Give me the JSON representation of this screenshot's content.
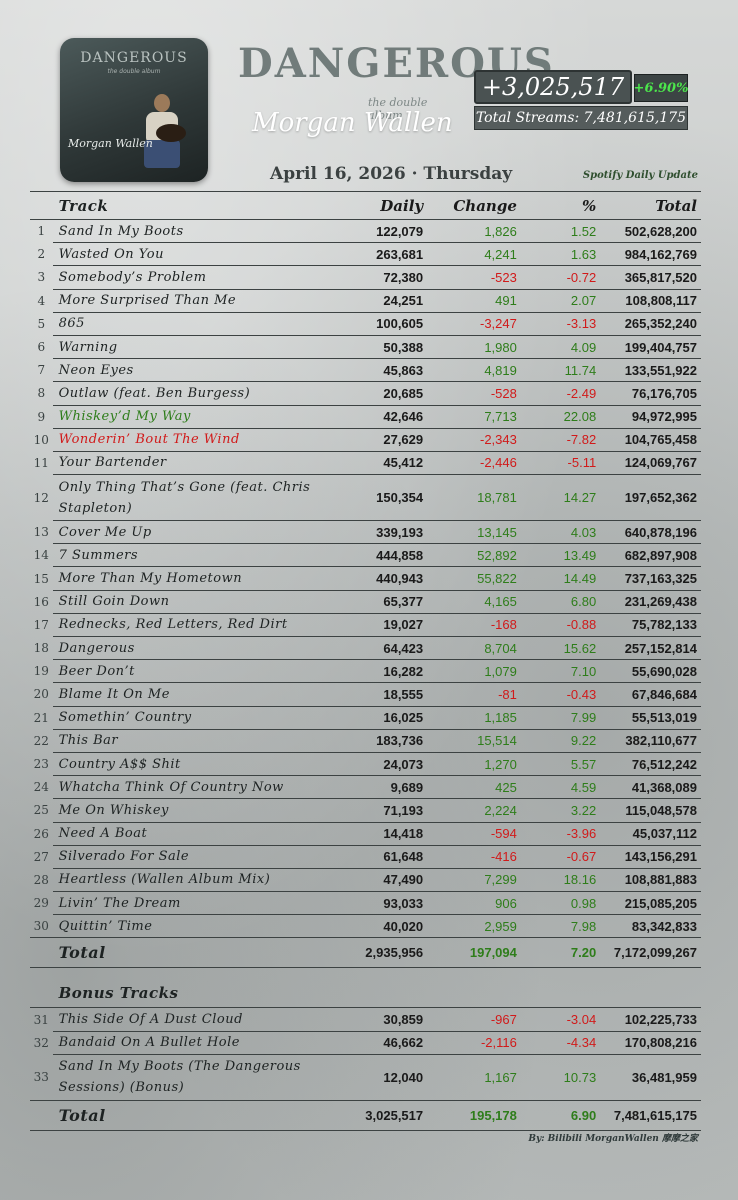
{
  "album": {
    "cover_title": "DANGEROUS",
    "cover_subtitle": "the double album",
    "cover_artist": "Morgan Wallen"
  },
  "header": {
    "logo_title": "DANGEROUS",
    "logo_subtitle": "the double album",
    "artist": "Morgan Wallen",
    "daily_gain": "+3,025,517",
    "daily_pct": "+6.90%",
    "total_streams": "Total Streams: 7,481,615,175",
    "date": "April 16, 2026 · Thursday",
    "source": "Spotify Daily Update"
  },
  "columns": {
    "track": "Track",
    "daily": "Daily",
    "change": "Change",
    "pct": "%",
    "total": "Total"
  },
  "tracks": [
    {
      "n": "1",
      "name": "Sand In My Boots",
      "daily": "122,079",
      "change": "1,826",
      "pct": "1.52",
      "total": "502,628,200"
    },
    {
      "n": "2",
      "name": "Wasted On You",
      "daily": "263,681",
      "change": "4,241",
      "pct": "1.63",
      "total": "984,162,769"
    },
    {
      "n": "3",
      "name": "Somebody’s Problem",
      "daily": "72,380",
      "change": "-523",
      "pct": "-0.72",
      "total": "365,817,520"
    },
    {
      "n": "4",
      "name": "More Surprised Than Me",
      "daily": "24,251",
      "change": "491",
      "pct": "2.07",
      "total": "108,808,117"
    },
    {
      "n": "5",
      "name": "865",
      "daily": "100,605",
      "change": "-3,247",
      "pct": "-3.13",
      "total": "265,352,240"
    },
    {
      "n": "6",
      "name": "Warning",
      "daily": "50,388",
      "change": "1,980",
      "pct": "4.09",
      "total": "199,404,757"
    },
    {
      "n": "7",
      "name": "Neon Eyes",
      "daily": "45,863",
      "change": "4,819",
      "pct": "11.74",
      "total": "133,551,922"
    },
    {
      "n": "8",
      "name": "Outlaw (feat. Ben Burgess)",
      "daily": "20,685",
      "change": "-528",
      "pct": "-2.49",
      "total": "76,176,705"
    },
    {
      "n": "9",
      "name": "Whiskey’d My Way",
      "daily": "42,646",
      "change": "7,713",
      "pct": "22.08",
      "total": "94,972,995"
    },
    {
      "n": "10",
      "name": "Wonderin’ Bout The Wind",
      "daily": "27,629",
      "change": "-2,343",
      "pct": "-7.82",
      "total": "104,765,458"
    },
    {
      "n": "11",
      "name": "Your Bartender",
      "daily": "45,412",
      "change": "-2,446",
      "pct": "-5.11",
      "total": "124,069,767"
    },
    {
      "n": "12",
      "name": "Only Thing That’s Gone (feat. Chris Stapleton)",
      "daily": "150,354",
      "change": "18,781",
      "pct": "14.27",
      "total": "197,652,362"
    },
    {
      "n": "13",
      "name": "Cover Me Up",
      "daily": "339,193",
      "change": "13,145",
      "pct": "4.03",
      "total": "640,878,196"
    },
    {
      "n": "14",
      "name": "7 Summers",
      "daily": "444,858",
      "change": "52,892",
      "pct": "13.49",
      "total": "682,897,908"
    },
    {
      "n": "15",
      "name": "More Than My Hometown",
      "daily": "440,943",
      "change": "55,822",
      "pct": "14.49",
      "total": "737,163,325"
    },
    {
      "n": "16",
      "name": "Still Goin Down",
      "daily": "65,377",
      "change": "4,165",
      "pct": "6.80",
      "total": "231,269,438"
    },
    {
      "n": "17",
      "name": "Rednecks, Red Letters, Red Dirt",
      "daily": "19,027",
      "change": "-168",
      "pct": "-0.88",
      "total": "75,782,133"
    },
    {
      "n": "18",
      "name": "Dangerous",
      "daily": "64,423",
      "change": "8,704",
      "pct": "15.62",
      "total": "257,152,814"
    },
    {
      "n": "19",
      "name": "Beer Don’t",
      "daily": "16,282",
      "change": "1,079",
      "pct": "7.10",
      "total": "55,690,028"
    },
    {
      "n": "20",
      "name": "Blame It On Me",
      "daily": "18,555",
      "change": "-81",
      "pct": "-0.43",
      "total": "67,846,684"
    },
    {
      "n": "21",
      "name": "Somethin’ Country",
      "daily": "16,025",
      "change": "1,185",
      "pct": "7.99",
      "total": "55,513,019"
    },
    {
      "n": "22",
      "name": "This Bar",
      "daily": "183,736",
      "change": "15,514",
      "pct": "9.22",
      "total": "382,110,677"
    },
    {
      "n": "23",
      "name": "Country A$$ Shit",
      "daily": "24,073",
      "change": "1,270",
      "pct": "5.57",
      "total": "76,512,242"
    },
    {
      "n": "24",
      "name": "Whatcha Think Of Country Now",
      "daily": "9,689",
      "change": "425",
      "pct": "4.59",
      "total": "41,368,089"
    },
    {
      "n": "25",
      "name": "Me On Whiskey",
      "daily": "71,193",
      "change": "2,224",
      "pct": "3.22",
      "total": "115,048,578"
    },
    {
      "n": "26",
      "name": "Need A Boat",
      "daily": "14,418",
      "change": "-594",
      "pct": "-3.96",
      "total": "45,037,112"
    },
    {
      "n": "27",
      "name": "Silverado For Sale",
      "daily": "61,648",
      "change": "-416",
      "pct": "-0.67",
      "total": "143,156,291"
    },
    {
      "n": "28",
      "name": "Heartless (Wallen Album Mix)",
      "daily": "47,490",
      "change": "7,299",
      "pct": "18.16",
      "total": "108,881,883"
    },
    {
      "n": "29",
      "name": "Livin’ The Dream",
      "daily": "93,033",
      "change": "906",
      "pct": "0.98",
      "total": "215,085,205"
    },
    {
      "n": "30",
      "name": "Quittin’ Time",
      "daily": "40,020",
      "change": "2,959",
      "pct": "7.98",
      "total": "83,342,833"
    }
  ],
  "subtotal": {
    "label": "Total",
    "daily": "2,935,956",
    "change": "197,094",
    "pct": "7.20",
    "total": "7,172,099,267"
  },
  "bonus_heading": "Bonus Tracks",
  "bonus_tracks": [
    {
      "n": "31",
      "name": "This Side Of A Dust Cloud",
      "daily": "30,859",
      "change": "-967",
      "pct": "-3.04",
      "total": "102,225,733"
    },
    {
      "n": "32",
      "name": "Bandaid On A Bullet Hole",
      "daily": "46,662",
      "change": "-2,116",
      "pct": "-4.34",
      "total": "170,808,216"
    },
    {
      "n": "33",
      "name": "Sand In My Boots (The Dangerous Sessions) (Bonus)",
      "daily": "12,040",
      "change": "1,167",
      "pct": "10.73",
      "total": "36,481,959"
    }
  ],
  "grand_total": {
    "label": "Total",
    "daily": "3,025,517",
    "change": "195,178",
    "pct": "6.90",
    "total": "7,481,615,175"
  },
  "credit": "By: Bilibili MorganWallen 摩摩之家",
  "colors": {
    "positive": "#2e7d1a",
    "negative": "#d11a1a",
    "pct_badge": "#4ce64c"
  }
}
